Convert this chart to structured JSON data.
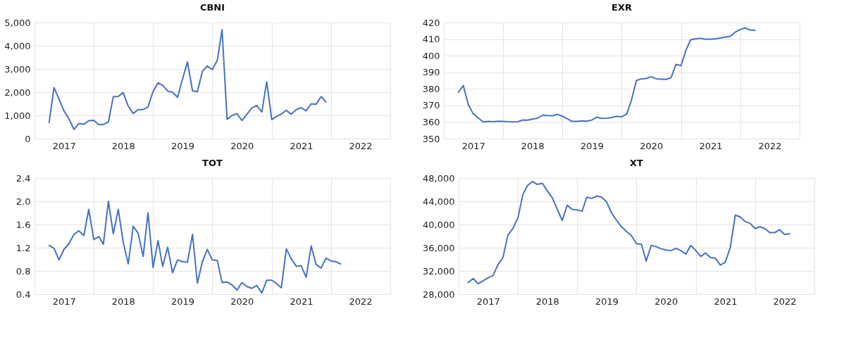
{
  "chart_data": [
    {
      "type": "line",
      "title": "CBNI",
      "grid": true,
      "xlim": [
        "2017-01",
        "2023-01"
      ],
      "xticks": [
        {
          "value": "2017-01",
          "label": null
        },
        {
          "value": "2017-07",
          "label": "2017"
        },
        {
          "value": "2018-01",
          "label": null
        },
        {
          "value": "2018-07",
          "label": "2018"
        },
        {
          "value": "2019-01",
          "label": null
        },
        {
          "value": "2019-07",
          "label": "2019"
        },
        {
          "value": "2020-01",
          "label": null
        },
        {
          "value": "2020-07",
          "label": "2020"
        },
        {
          "value": "2021-01",
          "label": null
        },
        {
          "value": "2021-07",
          "label": "2021"
        },
        {
          "value": "2022-01",
          "label": null
        },
        {
          "value": "2022-07",
          "label": "2022"
        },
        {
          "value": "2023-01",
          "label": null
        }
      ],
      "ylim": [
        0,
        5000
      ],
      "yticks": [
        0,
        {
          "value": 1000,
          "label": "1,000"
        },
        {
          "value": 2000,
          "label": "2,000"
        },
        {
          "value": 3000,
          "label": "3,000"
        },
        {
          "value": 4000,
          "label": "4,000"
        },
        {
          "value": 5000,
          "label": "5,000"
        }
      ],
      "x": [
        "2017-04",
        "2017-05",
        "2017-06",
        "2017-07",
        "2017-08",
        "2017-09",
        "2017-10",
        "2017-11",
        "2017-12",
        "2018-01",
        "2018-02",
        "2018-03",
        "2018-04",
        "2018-05",
        "2018-06",
        "2018-07",
        "2018-08",
        "2018-09",
        "2018-10",
        "2018-11",
        "2018-12",
        "2019-01",
        "2019-02",
        "2019-03",
        "2019-04",
        "2019-05",
        "2019-06",
        "2019-07",
        "2019-08",
        "2019-09",
        "2019-10",
        "2019-11",
        "2019-12",
        "2020-01",
        "2020-02",
        "2020-03",
        "2020-04",
        "2020-05",
        "2020-06",
        "2020-07",
        "2020-08",
        "2020-09",
        "2020-10",
        "2020-11",
        "2020-12",
        "2021-01",
        "2021-02",
        "2021-03",
        "2021-04",
        "2021-05",
        "2021-06",
        "2021-07",
        "2021-08",
        "2021-09",
        "2021-10",
        "2021-11",
        "2021-12"
      ],
      "series": [
        {
          "color": "#4472c4",
          "values": [
            700,
            2200,
            1700,
            1200,
            850,
            400,
            650,
            620,
            770,
            790,
            600,
            610,
            720,
            1800,
            1820,
            1980,
            1400,
            1080,
            1250,
            1250,
            1370,
            2030,
            2400,
            2300,
            2050,
            2000,
            1780,
            2550,
            3300,
            2060,
            2020,
            2900,
            3130,
            2970,
            3380,
            4690,
            830,
            1000,
            1080,
            780,
            1050,
            1320,
            1430,
            1150,
            2450,
            820,
            960,
            1060,
            1220,
            1050,
            1250,
            1330,
            1200,
            1500,
            1480,
            1810,
            1580
          ]
        }
      ]
    },
    {
      "type": "line",
      "title": "EXR",
      "grid": true,
      "xlim": [
        "2017-01",
        "2023-01"
      ],
      "xticks": [
        {
          "value": "2017-01",
          "label": null
        },
        {
          "value": "2017-07",
          "label": "2017"
        },
        {
          "value": "2018-01",
          "label": null
        },
        {
          "value": "2018-07",
          "label": "2018"
        },
        {
          "value": "2019-01",
          "label": null
        },
        {
          "value": "2019-07",
          "label": "2019"
        },
        {
          "value": "2020-01",
          "label": null
        },
        {
          "value": "2020-07",
          "label": "2020"
        },
        {
          "value": "2021-01",
          "label": null
        },
        {
          "value": "2021-07",
          "label": "2021"
        },
        {
          "value": "2022-01",
          "label": null
        },
        {
          "value": "2022-07",
          "label": "2022"
        },
        {
          "value": "2023-01",
          "label": null
        }
      ],
      "ylim": [
        350,
        420
      ],
      "yticks": [
        350,
        360,
        370,
        380,
        390,
        400,
        410,
        420
      ],
      "x": [
        "2017-04",
        "2017-05",
        "2017-06",
        "2017-07",
        "2017-08",
        "2017-09",
        "2017-10",
        "2017-11",
        "2017-12",
        "2018-01",
        "2018-02",
        "2018-03",
        "2018-04",
        "2018-05",
        "2018-06",
        "2018-07",
        "2018-08",
        "2018-09",
        "2018-10",
        "2018-11",
        "2018-12",
        "2019-01",
        "2019-02",
        "2019-03",
        "2019-04",
        "2019-05",
        "2019-06",
        "2019-07",
        "2019-08",
        "2019-09",
        "2019-10",
        "2019-11",
        "2019-12",
        "2020-01",
        "2020-02",
        "2020-03",
        "2020-04",
        "2020-05",
        "2020-06",
        "2020-07",
        "2020-08",
        "2020-09",
        "2020-10",
        "2020-11",
        "2020-12",
        "2021-01",
        "2021-02",
        "2021-03",
        "2021-04",
        "2021-05",
        "2021-06",
        "2021-07",
        "2021-08",
        "2021-09",
        "2021-10",
        "2021-11",
        "2021-12",
        "2022-01",
        "2022-02",
        "2022-03",
        "2022-04"
      ],
      "series": [
        {
          "color": "#4472c4",
          "values": [
            378,
            382,
            370.5,
            365,
            362.5,
            360,
            360.4,
            360.2,
            360.5,
            360.4,
            360.2,
            360.1,
            360.2,
            361.2,
            361.1,
            361.8,
            362.3,
            364.1,
            363.9,
            363.8,
            364.6,
            363.6,
            361.9,
            360.4,
            360.4,
            360.7,
            360.5,
            361.2,
            362.9,
            362.2,
            362.3,
            362.7,
            363.5,
            363.1,
            364.8,
            373,
            385,
            386,
            386.3,
            387.3,
            386.1,
            385.9,
            385.7,
            386.8,
            394.8,
            394,
            403.5,
            409.6,
            410.2,
            410.5,
            409.9,
            409.9,
            410.2,
            410.7,
            411.2,
            411.7,
            414.2,
            415.8,
            416.7,
            415.5,
            415.3
          ]
        }
      ]
    },
    {
      "type": "line",
      "title": "TOT",
      "grid": true,
      "xlim": [
        "2017-01",
        "2023-01"
      ],
      "xticks": [
        {
          "value": "2017-01",
          "label": null
        },
        {
          "value": "2017-07",
          "label": "2017"
        },
        {
          "value": "2018-01",
          "label": null
        },
        {
          "value": "2018-07",
          "label": "2018"
        },
        {
          "value": "2019-01",
          "label": null
        },
        {
          "value": "2019-07",
          "label": "2019"
        },
        {
          "value": "2020-01",
          "label": null
        },
        {
          "value": "2020-07",
          "label": "2020"
        },
        {
          "value": "2021-01",
          "label": null
        },
        {
          "value": "2021-07",
          "label": "2021"
        },
        {
          "value": "2022-01",
          "label": null
        },
        {
          "value": "2022-07",
          "label": "2022"
        },
        {
          "value": "2023-01",
          "label": null
        }
      ],
      "ylim": [
        0.4,
        2.4
      ],
      "yticks": [
        0.4,
        0.8,
        1.2,
        1.6,
        {
          "value": 2,
          "label": "2.0"
        },
        2.4
      ],
      "x": [
        "2017-04",
        "2017-05",
        "2017-06",
        "2017-07",
        "2017-08",
        "2017-09",
        "2017-10",
        "2017-11",
        "2017-12",
        "2018-01",
        "2018-02",
        "2018-03",
        "2018-04",
        "2018-05",
        "2018-06",
        "2018-07",
        "2018-08",
        "2018-09",
        "2018-10",
        "2018-11",
        "2018-12",
        "2019-01",
        "2019-02",
        "2019-03",
        "2019-04",
        "2019-05",
        "2019-06",
        "2019-07",
        "2019-08",
        "2019-09",
        "2019-10",
        "2019-11",
        "2019-12",
        "2020-01",
        "2020-02",
        "2020-03",
        "2020-04",
        "2020-05",
        "2020-06",
        "2020-07",
        "2020-08",
        "2020-09",
        "2020-10",
        "2020-11",
        "2020-12",
        "2021-01",
        "2021-02",
        "2021-03",
        "2021-04",
        "2021-05",
        "2021-06",
        "2021-07",
        "2021-08",
        "2021-09",
        "2021-10",
        "2021-11",
        "2021-12",
        "2022-01",
        "2022-02",
        "2022-03"
      ],
      "series": [
        {
          "color": "#4472c4",
          "values": [
            1.24,
            1.19,
            0.99,
            1.17,
            1.27,
            1.43,
            1.49,
            1.41,
            1.86,
            1.34,
            1.39,
            1.26,
            2.0,
            1.44,
            1.86,
            1.3,
            0.92,
            1.57,
            1.45,
            1.05,
            1.8,
            0.86,
            1.32,
            0.88,
            1.21,
            0.77,
            0.99,
            0.96,
            0.95,
            1.43,
            0.59,
            0.96,
            1.17,
            0.99,
            0.98,
            0.6,
            0.61,
            0.56,
            0.47,
            0.6,
            0.53,
            0.5,
            0.55,
            0.42,
            0.64,
            0.64,
            0.58,
            0.51,
            1.18,
            1.01,
            0.88,
            0.89,
            0.69,
            1.23,
            0.91,
            0.85,
            1.02,
            0.97,
            0.96,
            0.92
          ]
        }
      ]
    },
    {
      "type": "line",
      "title": "XT",
      "grid": true,
      "xlim": [
        "2017-01",
        "2023-01"
      ],
      "xticks": [
        {
          "value": "2017-01",
          "label": null
        },
        {
          "value": "2017-07",
          "label": "2017"
        },
        {
          "value": "2018-01",
          "label": null
        },
        {
          "value": "2018-07",
          "label": "2018"
        },
        {
          "value": "2019-01",
          "label": null
        },
        {
          "value": "2019-07",
          "label": "2019"
        },
        {
          "value": "2020-01",
          "label": null
        },
        {
          "value": "2020-07",
          "label": "2020"
        },
        {
          "value": "2021-01",
          "label": null
        },
        {
          "value": "2021-07",
          "label": "2021"
        },
        {
          "value": "2022-01",
          "label": null
        },
        {
          "value": "2022-07",
          "label": "2022"
        },
        {
          "value": "2023-01",
          "label": null
        }
      ],
      "ylim": [
        28000,
        48000
      ],
      "yticks": [
        {
          "value": 28000,
          "label": "28,000"
        },
        {
          "value": 32000,
          "label": "32,000"
        },
        {
          "value": 36000,
          "label": "36,000"
        },
        {
          "value": 40000,
          "label": "40,000"
        },
        {
          "value": 44000,
          "label": "44,000"
        },
        {
          "value": 48000,
          "label": "48,000"
        }
      ],
      "x": [
        "2017-03",
        "2017-04",
        "2017-05",
        "2017-06",
        "2017-07",
        "2017-08",
        "2017-09",
        "2017-10",
        "2017-11",
        "2017-12",
        "2018-01",
        "2018-02",
        "2018-03",
        "2018-04",
        "2018-05",
        "2018-06",
        "2018-07",
        "2018-08",
        "2018-09",
        "2018-10",
        "2018-11",
        "2018-12",
        "2019-01",
        "2019-02",
        "2019-03",
        "2019-04",
        "2019-05",
        "2019-06",
        "2019-07",
        "2019-08",
        "2019-09",
        "2019-10",
        "2019-11",
        "2019-12",
        "2020-01",
        "2020-02",
        "2020-03",
        "2020-04",
        "2020-05",
        "2020-06",
        "2020-07",
        "2020-08",
        "2020-09",
        "2020-10",
        "2020-11",
        "2020-12",
        "2021-01",
        "2021-02",
        "2021-03",
        "2021-04",
        "2021-05",
        "2021-06",
        "2021-07",
        "2021-08",
        "2021-09",
        "2021-10",
        "2021-11",
        "2021-12",
        "2022-01",
        "2022-02",
        "2022-03",
        "2022-04",
        "2022-05",
        "2022-06",
        "2022-07",
        "2022-08"
      ],
      "series": [
        {
          "color": "#4472c4",
          "values": [
            30000,
            30700,
            29800,
            30300,
            30800,
            31200,
            33100,
            34300,
            38200,
            39300,
            41100,
            45200,
            46700,
            47400,
            46900,
            47100,
            45800,
            44600,
            42600,
            40700,
            43300,
            42600,
            42500,
            42300,
            44700,
            44500,
            44900,
            44700,
            43900,
            42000,
            40700,
            39600,
            38800,
            38100,
            36700,
            36600,
            33700,
            36400,
            36200,
            35800,
            35600,
            35500,
            35900,
            35500,
            34900,
            36400,
            35500,
            34500,
            35100,
            34300,
            34200,
            33000,
            33500,
            36000,
            41600,
            41300,
            40500,
            40200,
            39300,
            39600,
            39300,
            38600,
            38600,
            39100,
            38300,
            38400
          ]
        }
      ]
    }
  ]
}
